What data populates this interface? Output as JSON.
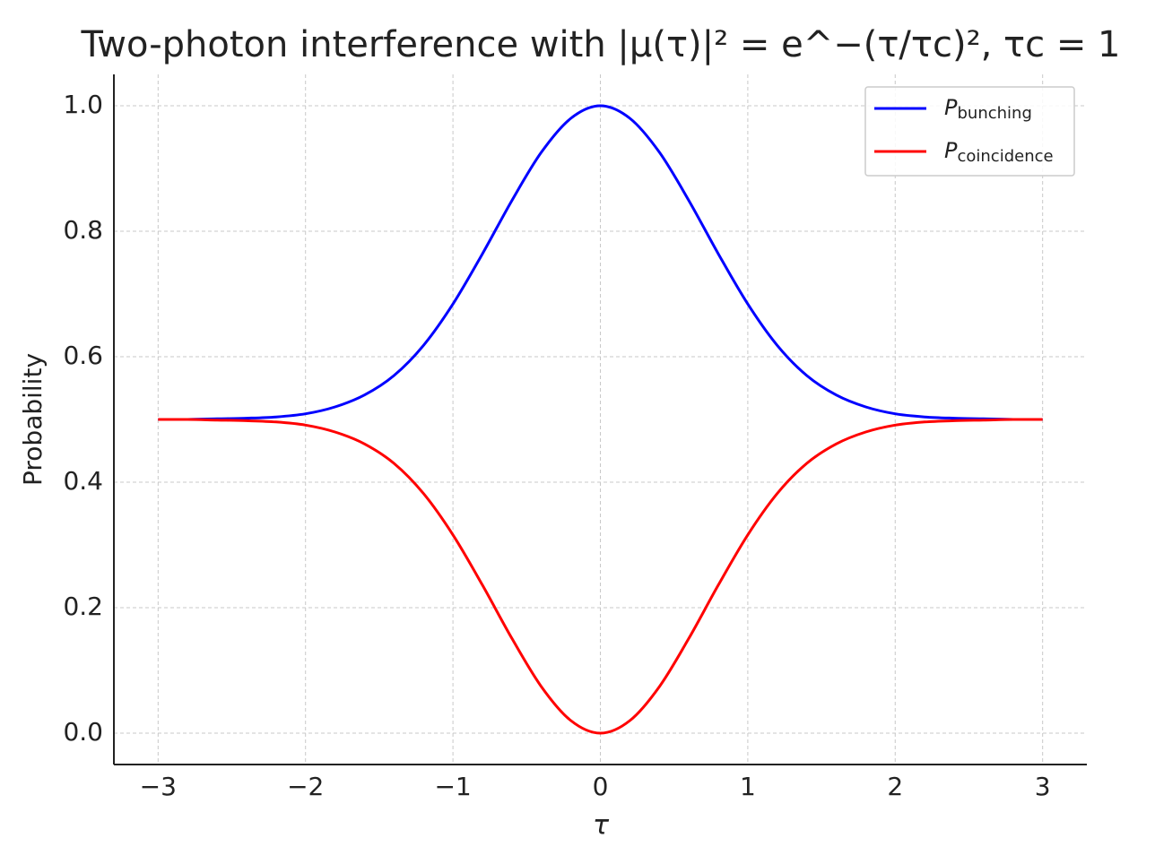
{
  "chart_data": {
    "type": "line",
    "title": "Two-photon interference with  |μ(τ)|² = e^−(τ/τc)²,  τc = 1",
    "xlabel": "τ",
    "ylabel": "Probability",
    "x": [
      -3.0,
      -2.8,
      -2.6,
      -2.4,
      -2.2,
      -2.0,
      -1.8,
      -1.6,
      -1.4,
      -1.2,
      -1.0,
      -0.8,
      -0.6,
      -0.4,
      -0.2,
      0.0,
      0.2,
      0.4,
      0.6,
      0.8,
      1.0,
      1.2,
      1.4,
      1.6,
      1.8,
      2.0,
      2.2,
      2.4,
      2.6,
      2.8,
      3.0
    ],
    "series": [
      {
        "name": "P_bunching",
        "color": "#0000ff",
        "values": [
          0.5,
          0.5,
          0.501,
          0.502,
          0.504,
          0.509,
          0.52,
          0.539,
          0.57,
          0.618,
          0.684,
          0.764,
          0.849,
          0.926,
          0.98,
          1.0,
          0.98,
          0.926,
          0.849,
          0.764,
          0.684,
          0.618,
          0.57,
          0.539,
          0.52,
          0.509,
          0.504,
          0.502,
          0.501,
          0.5,
          0.5
        ]
      },
      {
        "name": "P_coincidence",
        "color": "#ff0000",
        "values": [
          0.5,
          0.5,
          0.499,
          0.498,
          0.496,
          0.491,
          0.48,
          0.461,
          0.43,
          0.382,
          0.316,
          0.236,
          0.151,
          0.074,
          0.02,
          0.0,
          0.02,
          0.074,
          0.151,
          0.236,
          0.316,
          0.382,
          0.43,
          0.461,
          0.48,
          0.491,
          0.496,
          0.498,
          0.499,
          0.5,
          0.5
        ]
      }
    ],
    "xlim": [
      -3.3,
      3.3
    ],
    "xticks": [
      {
        "value": -3,
        "label": "−3"
      },
      {
        "value": -2,
        "label": "−2"
      },
      {
        "value": -1,
        "label": "−1"
      },
      0,
      1,
      2,
      3
    ],
    "ylim": [
      -0.05,
      1.05
    ],
    "yticks": [
      {
        "value": 0,
        "label": "0.0"
      },
      0.2,
      0.4,
      0.6,
      0.8,
      {
        "value": 1,
        "label": "1.0"
      }
    ],
    "grid": true,
    "legend": "upper right"
  }
}
